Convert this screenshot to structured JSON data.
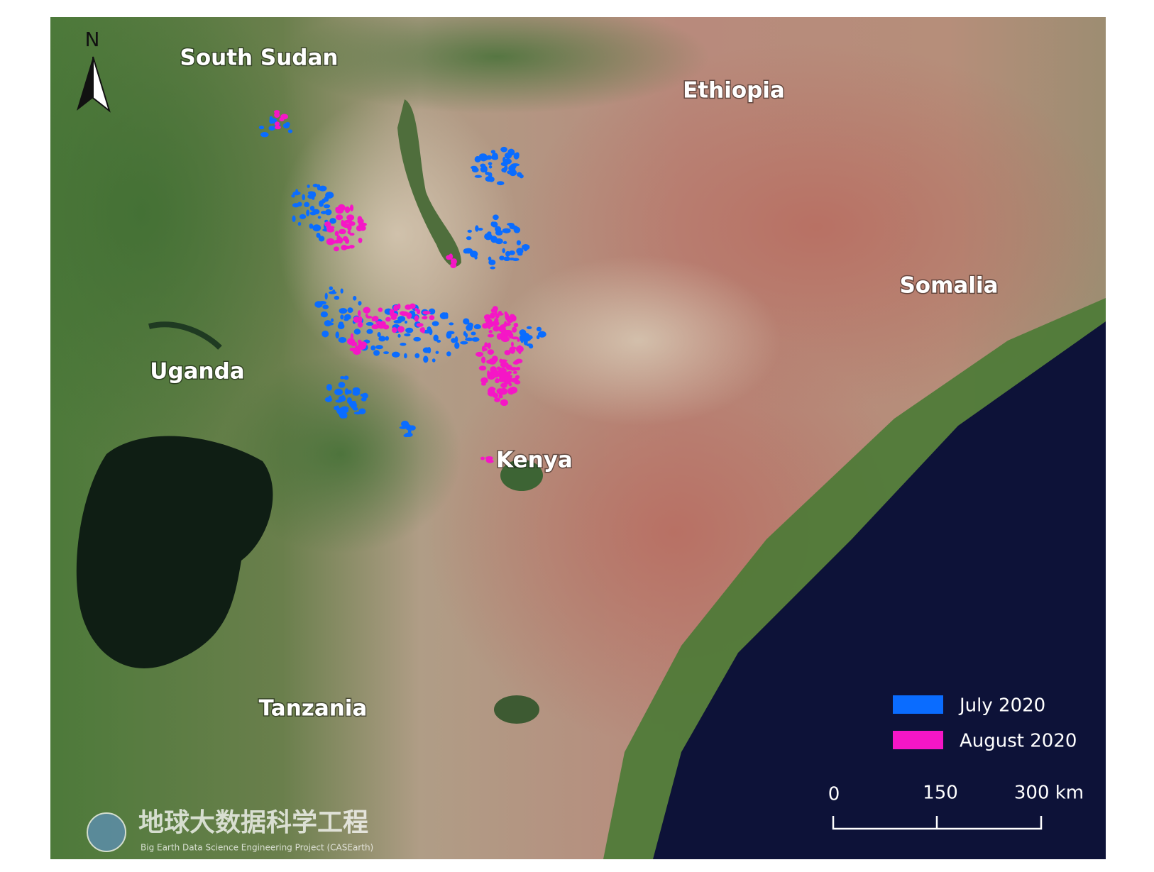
{
  "map": {
    "north_label": "N",
    "countries": [
      "South Sudan",
      "Ethiopia",
      "Somalia",
      "Uganda",
      "Kenya",
      "Tanzania"
    ],
    "legend": [
      "July 2020",
      "August 2020"
    ],
    "scale_bar": [
      "0",
      "150",
      "300 km"
    ],
    "watermark": {
      "title": "地球大数据科学工程",
      "subtitle": "Big Earth Data Science Engineering Project (CASEarth)"
    }
  }
}
